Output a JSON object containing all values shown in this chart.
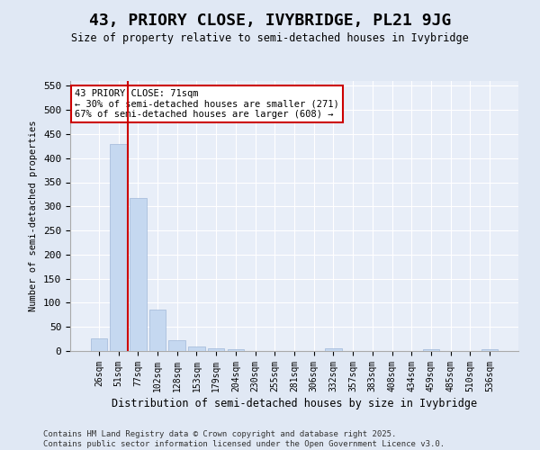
{
  "title": "43, PRIORY CLOSE, IVYBRIDGE, PL21 9JG",
  "subtitle": "Size of property relative to semi-detached houses in Ivybridge",
  "xlabel": "Distribution of semi-detached houses by size in Ivybridge",
  "ylabel": "Number of semi-detached properties",
  "categories": [
    "26sqm",
    "51sqm",
    "77sqm",
    "102sqm",
    "128sqm",
    "153sqm",
    "179sqm",
    "204sqm",
    "230sqm",
    "255sqm",
    "281sqm",
    "306sqm",
    "332sqm",
    "357sqm",
    "383sqm",
    "408sqm",
    "434sqm",
    "459sqm",
    "485sqm",
    "510sqm",
    "536sqm"
  ],
  "values": [
    27,
    430,
    318,
    85,
    22,
    10,
    6,
    4,
    0,
    0,
    0,
    0,
    5,
    0,
    0,
    0,
    0,
    3,
    0,
    0,
    4
  ],
  "bar_color": "#c5d8f0",
  "bar_edge_color": "#a0b8d8",
  "vline_x": 1.5,
  "vline_color": "#cc0000",
  "annotation_line1": "43 PRIORY CLOSE: 71sqm",
  "annotation_line2": "← 30% of semi-detached houses are smaller (271)",
  "annotation_line3": "67% of semi-detached houses are larger (608) →",
  "annotation_box_color": "#ffffff",
  "annotation_box_edge": "#cc0000",
  "ylim": [
    0,
    560
  ],
  "yticks": [
    0,
    50,
    100,
    150,
    200,
    250,
    300,
    350,
    400,
    450,
    500,
    550
  ],
  "footer_line1": "Contains HM Land Registry data © Crown copyright and database right 2025.",
  "footer_line2": "Contains public sector information licensed under the Open Government Licence v3.0.",
  "bg_color": "#e0e8f4",
  "plot_bg_color": "#e8eef8"
}
